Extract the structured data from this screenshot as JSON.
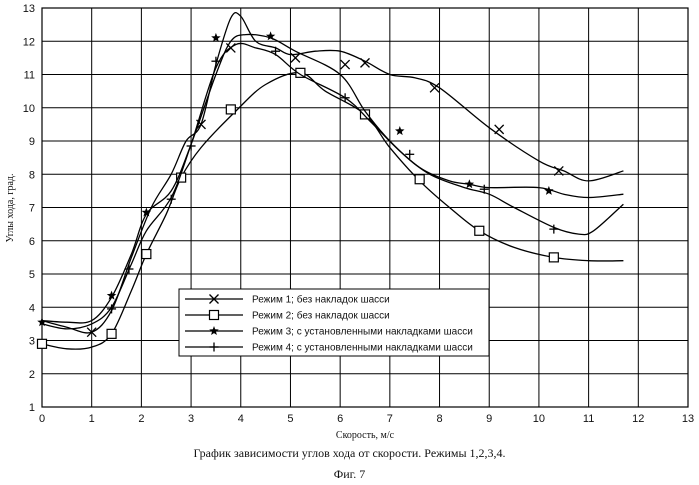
{
  "chart_data": {
    "type": "line",
    "title": "График зависимости углов хода от скорости. Режимы 1,2,3,4.",
    "xlabel": "Скорость, м/с",
    "ylabel": "Углы хода, град.",
    "xlim": [
      0,
      13
    ],
    "ylim": [
      1,
      13
    ],
    "x_ticks": [
      "0",
      "1",
      "2",
      "3",
      "4",
      "5",
      "6",
      "7",
      "8",
      "9",
      "10",
      "11",
      "12",
      "13"
    ],
    "y_ticks": [
      "1",
      "2",
      "3",
      "4",
      "5",
      "6",
      "7",
      "8",
      "9",
      "10",
      "11",
      "12",
      "13"
    ],
    "grid": true,
    "series": [
      {
        "name": "Режим 1; без накладок шасси",
        "marker": "x",
        "points": [
          [
            0,
            3.6
          ],
          [
            0.5,
            3.4
          ],
          [
            1,
            3.25
          ],
          [
            1.4,
            3.9
          ],
          [
            1.8,
            5.5
          ],
          [
            2.2,
            7.0
          ],
          [
            2.6,
            8.0
          ],
          [
            2.9,
            9.0
          ],
          [
            3.2,
            9.5
          ],
          [
            3.5,
            11.3
          ],
          [
            3.8,
            12.7
          ],
          [
            4.0,
            12.75
          ],
          [
            4.3,
            12.0
          ],
          [
            4.7,
            11.8
          ],
          [
            5.0,
            11.6
          ],
          [
            5.5,
            11.7
          ],
          [
            6.0,
            11.7
          ],
          [
            6.5,
            11.4
          ],
          [
            7.0,
            11.0
          ],
          [
            7.5,
            10.9
          ],
          [
            8.0,
            10.6
          ],
          [
            9.0,
            9.4
          ],
          [
            10.0,
            8.4
          ],
          [
            10.5,
            8.1
          ],
          [
            11.0,
            7.8
          ],
          [
            11.7,
            8.1
          ]
        ],
        "marker_points": [
          [
            1,
            3.25
          ],
          [
            3.2,
            9.5
          ],
          [
            3.8,
            11.8
          ],
          [
            5.1,
            11.5
          ],
          [
            6.1,
            11.3
          ],
          [
            6.5,
            11.35
          ],
          [
            7.9,
            10.6
          ],
          [
            9.2,
            9.35
          ],
          [
            10.4,
            8.1
          ]
        ]
      },
      {
        "name": "Режим 2; без накладок шасси",
        "marker": "square",
        "points": [
          [
            0,
            2.9
          ],
          [
            0.5,
            2.75
          ],
          [
            1,
            2.8
          ],
          [
            1.4,
            3.2
          ],
          [
            1.8,
            4.5
          ],
          [
            2.1,
            5.6
          ],
          [
            2.5,
            6.8
          ],
          [
            2.8,
            7.9
          ],
          [
            3.2,
            8.8
          ],
          [
            3.9,
            9.9
          ],
          [
            4.5,
            10.7
          ],
          [
            5.2,
            11.05
          ],
          [
            5.7,
            10.5
          ],
          [
            6.5,
            9.8
          ],
          [
            7.0,
            8.8
          ],
          [
            7.6,
            7.8
          ],
          [
            8.2,
            7.0
          ],
          [
            8.8,
            6.3
          ],
          [
            9.5,
            5.8
          ],
          [
            10.3,
            5.5
          ],
          [
            11.0,
            5.4
          ],
          [
            11.7,
            5.4
          ]
        ],
        "marker_points": [
          [
            0,
            2.9
          ],
          [
            1.4,
            3.2
          ],
          [
            2.1,
            5.6
          ],
          [
            2.8,
            7.9
          ],
          [
            3.8,
            9.95
          ],
          [
            5.2,
            11.05
          ],
          [
            6.5,
            9.8
          ],
          [
            7.6,
            7.85
          ],
          [
            8.8,
            6.3
          ],
          [
            10.3,
            5.5
          ]
        ]
      },
      {
        "name": "Режим 3; с установленными накладками шасси",
        "marker": "star",
        "points": [
          [
            0,
            3.6
          ],
          [
            0.5,
            3.55
          ],
          [
            1,
            3.6
          ],
          [
            1.4,
            4.3
          ],
          [
            1.8,
            5.6
          ],
          [
            2.1,
            6.8
          ],
          [
            2.6,
            7.5
          ],
          [
            3.0,
            8.9
          ],
          [
            3.5,
            11.0
          ],
          [
            3.8,
            12.0
          ],
          [
            4.1,
            12.2
          ],
          [
            4.6,
            12.1
          ],
          [
            5.1,
            11.7
          ],
          [
            6.0,
            11.0
          ],
          [
            6.5,
            9.9
          ],
          [
            7.0,
            9.0
          ],
          [
            7.6,
            8.2
          ],
          [
            8.2,
            7.8
          ],
          [
            8.6,
            7.7
          ],
          [
            9.0,
            7.6
          ],
          [
            10.0,
            7.6
          ],
          [
            10.5,
            7.4
          ],
          [
            11.0,
            7.3
          ],
          [
            11.7,
            7.4
          ]
        ],
        "marker_points": [
          [
            0,
            3.55
          ],
          [
            1.4,
            4.35
          ],
          [
            2.1,
            6.85
          ],
          [
            3.5,
            12.1
          ],
          [
            4.6,
            12.15
          ],
          [
            7.2,
            9.3
          ],
          [
            8.6,
            7.7
          ],
          [
            10.2,
            7.5
          ]
        ]
      },
      {
        "name": "Режим 4;  с установленными накладками шасси",
        "marker": "plus",
        "points": [
          [
            0,
            3.5
          ],
          [
            0.5,
            3.35
          ],
          [
            1,
            3.5
          ],
          [
            1.4,
            4.0
          ],
          [
            1.8,
            5.3
          ],
          [
            2.1,
            6.3
          ],
          [
            2.6,
            7.3
          ],
          [
            3.0,
            8.9
          ],
          [
            3.5,
            11.2
          ],
          [
            3.9,
            11.9
          ],
          [
            4.3,
            11.8
          ],
          [
            4.7,
            11.6
          ],
          [
            5.2,
            11.0
          ],
          [
            6.1,
            10.3
          ],
          [
            6.6,
            9.6
          ],
          [
            7.2,
            8.7
          ],
          [
            7.8,
            8.0
          ],
          [
            8.5,
            7.6
          ],
          [
            9.0,
            7.4
          ],
          [
            9.5,
            7.0
          ],
          [
            10.3,
            6.4
          ],
          [
            10.8,
            6.2
          ],
          [
            11.1,
            6.3
          ],
          [
            11.7,
            7.1
          ]
        ],
        "marker_points": [
          [
            1.4,
            3.95
          ],
          [
            1.75,
            5.15
          ],
          [
            2.6,
            7.25
          ],
          [
            3.0,
            8.85
          ],
          [
            3.5,
            11.4
          ],
          [
            4.7,
            11.7
          ],
          [
            6.1,
            10.3
          ],
          [
            7.4,
            8.6
          ],
          [
            8.9,
            7.55
          ],
          [
            10.3,
            6.35
          ]
        ]
      }
    ],
    "legend": "center-left"
  },
  "caption": {
    "main": "График зависимости углов хода от скорости. Режимы 1,2,3,4.",
    "fig": "Фиг. 7"
  }
}
